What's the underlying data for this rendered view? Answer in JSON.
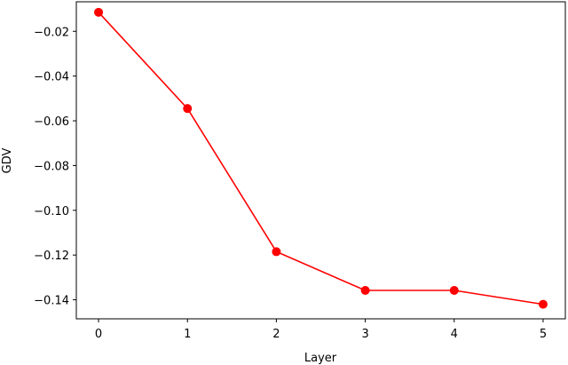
{
  "chart_data": {
    "type": "line",
    "x": [
      0,
      1,
      2,
      3,
      4,
      5
    ],
    "series": [
      {
        "values": [
          -0.0115,
          -0.0545,
          -0.1185,
          -0.1358,
          -0.1358,
          -0.142
        ],
        "color": "#ff0000"
      }
    ],
    "xlabel": "Layer",
    "ylabel": "GDV",
    "xlim": [
      -0.25,
      5.25
    ],
    "ylim": [
      -0.1485,
      -0.0068
    ],
    "xticks": [
      0,
      1,
      2,
      3,
      4,
      5
    ],
    "xtick_labels": [
      "0",
      "1",
      "2",
      "3",
      "4",
      "5"
    ],
    "yticks": [
      -0.02,
      -0.04,
      -0.06,
      -0.08,
      -0.1,
      -0.12,
      -0.14
    ],
    "ytick_labels": [
      "−0.02",
      "−0.04",
      "−0.06",
      "−0.08",
      "−0.10",
      "−0.12",
      "−0.14"
    ],
    "grid": false,
    "marker": "circle"
  }
}
